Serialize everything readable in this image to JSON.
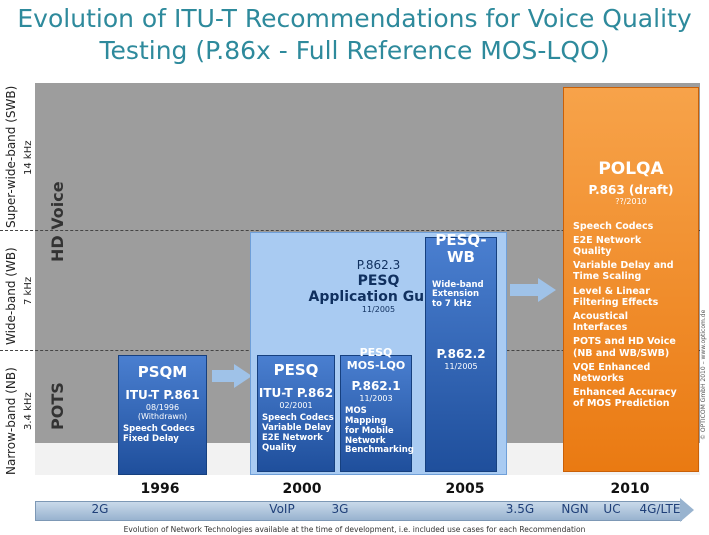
{
  "title": {
    "line1": "Evolution of ITU-T Recommendations for Voice Quality",
    "line2": "Testing (P.86x - Full Reference MOS-LQO)"
  },
  "bands": {
    "swb": "Super-wide-band (SWB)",
    "swb_freq": "14 kHz",
    "wb": "Wide-band (WB)",
    "wb_freq": "7 kHz",
    "nb": "Narrow-band (NB)",
    "nb_freq": "3.4 kHz",
    "hd": "HD Voice",
    "pots": "POTS"
  },
  "guide": {
    "number": "P.862.3",
    "name": "PESQ",
    "subtitle": "Application Guide",
    "date": "11/2005"
  },
  "boxes": [
    {
      "title": "PSQM",
      "number": "ITU-T P.861",
      "date": "08/1996",
      "note": "(Withdrawn)",
      "features": [
        "Speech Codecs",
        "Fixed Delay"
      ]
    },
    {
      "title": "PESQ",
      "number": "ITU-T P.862",
      "date": "02/2001",
      "features": [
        "Speech Codecs",
        "Variable Delay",
        "E2E Network",
        "Quality"
      ]
    },
    {
      "title": "PESQ",
      "subtitle": "MOS-LQO",
      "number": "P.862.1",
      "date": "11/2003",
      "features": [
        "MOS Mapping",
        "for Mobile",
        "Network",
        "Benchmarking"
      ]
    },
    {
      "title": "PESQ-",
      "subtitle": "WB",
      "features": [
        "Wide-band",
        "Extension",
        "to 7 kHz"
      ],
      "number": "P.862.2",
      "date": "11/2005"
    }
  ],
  "polqa": {
    "title": "POLQA",
    "number": "P.863 (draft)",
    "date": "??/2010",
    "features": [
      "Speech Codecs",
      "E2E Network",
      "Quality",
      "Variable Delay and",
      "Time Scaling",
      "Level & Linear",
      "Filtering Effects",
      "Acoustical",
      "Interfaces",
      "POTS and HD Voice",
      "(NB and WB/SWB)",
      "VQE Enhanced",
      "Networks",
      "Enhanced Accuracy",
      "of MOS Prediction"
    ]
  },
  "years": [
    "1996",
    "2000",
    "2005",
    "2010"
  ],
  "technologies": [
    "2G",
    "VoIP",
    "3G",
    "3.5G",
    "NGN",
    "UC",
    "4G/LTE"
  ],
  "caption": "Evolution of Network Technologies available at the time of development, i.e. included use cases for each Recommendation",
  "copyright": "© OPTICOM GmbH 2010 – www.opticom.de"
}
